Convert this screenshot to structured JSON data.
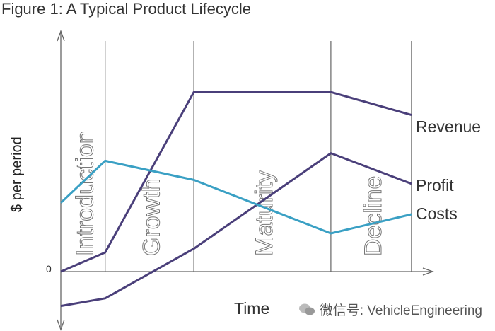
{
  "figure": {
    "title": "Figure 1: A Typical Product Lifecycle",
    "watermark": "微信号: VehicleEngineering"
  },
  "chart_data": {
    "type": "line",
    "title": "Figure 1: A Typical Product Lifecycle",
    "xlabel": "Time",
    "ylabel": "$ per period",
    "y_tick_labels": [
      "0"
    ],
    "xlim": [
      0,
      8.8
    ],
    "ylim": [
      -1.0,
      6.0
    ],
    "stages": [
      {
        "name": "Introduction",
        "start": 0,
        "end": 1.1
      },
      {
        "name": "Growth",
        "start": 1.1,
        "end": 3.3
      },
      {
        "name": "Maturity",
        "start": 3.3,
        "end": 6.7
      },
      {
        "name": "Decline",
        "start": 6.7,
        "end": 8.7
      }
    ],
    "series": [
      {
        "name": "Revenue",
        "color": "#4a3f7a",
        "x": [
          0,
          1.1,
          3.3,
          6.7,
          8.7
        ],
        "y": [
          0,
          0.5,
          4.7,
          4.7,
          4.1
        ]
      },
      {
        "name": "Profit",
        "color": "#4a3f7a",
        "x": [
          0,
          1.1,
          3.3,
          6.7,
          8.7
        ],
        "y": [
          -0.9,
          -0.7,
          0.6,
          3.1,
          2.3
        ]
      },
      {
        "name": "Costs",
        "color": "#3aa0c4",
        "x": [
          0,
          1.1,
          3.3,
          6.7,
          8.7
        ],
        "y": [
          1.8,
          2.9,
          2.4,
          1.0,
          1.5
        ]
      }
    ],
    "grid": false,
    "legend": "right"
  }
}
